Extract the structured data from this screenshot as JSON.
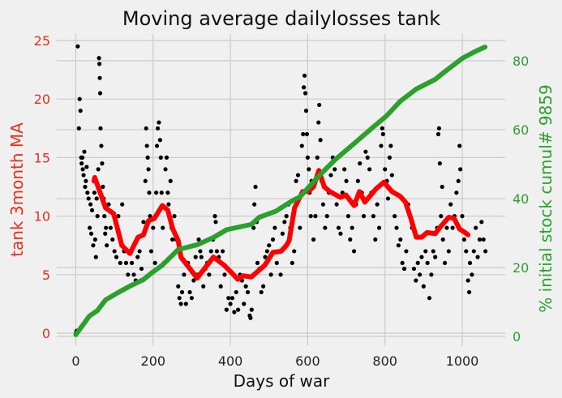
{
  "chart_data": {
    "type": "scatter+line",
    "title": "Moving average dailylosses tank",
    "xlabel": "Days of war",
    "ylabel_left": "tank 3month MA",
    "ylabel_right": "% initial stock cumul# 9859",
    "xlim": [
      -50,
      1110
    ],
    "ylim_left": [
      -0.7,
      25.7
    ],
    "ylim_right": [
      -3,
      87.6
    ],
    "xticks": [
      "0",
      "200",
      "400",
      "600",
      "800",
      "1000"
    ],
    "yticks_left": [
      "0",
      "5",
      "10",
      "15",
      "20",
      "25"
    ],
    "yticks_right": [
      "0",
      "20",
      "40",
      "60",
      "80"
    ],
    "grid": true,
    "colors": {
      "daily": "#000000",
      "ma": "#ff0000",
      "cumulative": "#2ca02c",
      "left_axis": "#e5301e",
      "right_axis": "#2ca02c",
      "background": "#f0f0f0"
    },
    "daily_losses": [
      [
        0,
        0
      ],
      [
        2,
        0.2
      ],
      [
        5,
        24.5
      ],
      [
        8,
        17.5
      ],
      [
        10,
        20
      ],
      [
        12,
        19
      ],
      [
        14,
        15
      ],
      [
        15,
        14.5
      ],
      [
        17,
        15
      ],
      [
        18,
        14
      ],
      [
        20,
        13.5
      ],
      [
        22,
        15.5
      ],
      [
        24,
        12.5
      ],
      [
        26,
        13
      ],
      [
        28,
        14.2
      ],
      [
        30,
        12
      ],
      [
        33,
        11.5
      ],
      [
        36,
        9
      ],
      [
        38,
        11
      ],
      [
        40,
        8.5
      ],
      [
        42,
        10.5
      ],
      [
        45,
        7.5
      ],
      [
        48,
        12
      ],
      [
        50,
        8
      ],
      [
        52,
        6.5
      ],
      [
        54,
        11.5
      ],
      [
        56,
        10
      ],
      [
        58,
        14
      ],
      [
        60,
        23.5
      ],
      [
        61,
        23
      ],
      [
        62,
        21.8
      ],
      [
        63,
        20.5
      ],
      [
        64,
        17.5
      ],
      [
        66,
        16
      ],
      [
        68,
        14.5
      ],
      [
        70,
        12.5
      ],
      [
        72,
        11.5
      ],
      [
        74,
        10
      ],
      [
        76,
        8.5
      ],
      [
        78,
        9
      ],
      [
        80,
        7.5
      ],
      [
        85,
        11
      ],
      [
        90,
        9
      ],
      [
        95,
        8
      ],
      [
        100,
        7
      ],
      [
        105,
        6.5
      ],
      [
        110,
        10
      ],
      [
        115,
        6
      ],
      [
        120,
        11
      ],
      [
        125,
        7
      ],
      [
        130,
        6
      ],
      [
        135,
        5
      ],
      [
        140,
        7
      ],
      [
        145,
        6
      ],
      [
        150,
        5
      ],
      [
        155,
        4.5
      ],
      [
        160,
        6.5
      ],
      [
        165,
        7
      ],
      [
        170,
        5.5
      ],
      [
        175,
        9.5
      ],
      [
        180,
        13
      ],
      [
        182,
        17.5
      ],
      [
        184,
        16
      ],
      [
        186,
        15
      ],
      [
        188,
        14
      ],
      [
        190,
        12
      ],
      [
        192,
        10
      ],
      [
        195,
        7
      ],
      [
        200,
        9
      ],
      [
        205,
        6
      ],
      [
        208,
        12
      ],
      [
        210,
        16
      ],
      [
        212,
        17.5
      ],
      [
        215,
        18
      ],
      [
        218,
        16.5
      ],
      [
        220,
        15
      ],
      [
        222,
        12
      ],
      [
        225,
        9
      ],
      [
        228,
        6
      ],
      [
        232,
        14
      ],
      [
        235,
        15
      ],
      [
        238,
        12
      ],
      [
        240,
        11
      ],
      [
        245,
        13
      ],
      [
        248,
        9
      ],
      [
        250,
        8
      ],
      [
        255,
        10
      ],
      [
        260,
        8
      ],
      [
        265,
        4
      ],
      [
        268,
        3
      ],
      [
        272,
        2.5
      ],
      [
        275,
        3.5
      ],
      [
        280,
        5
      ],
      [
        285,
        2.5
      ],
      [
        290,
        6
      ],
      [
        295,
        3.5
      ],
      [
        300,
        3
      ],
      [
        305,
        4.5
      ],
      [
        310,
        6.5
      ],
      [
        315,
        5
      ],
      [
        318,
        8
      ],
      [
        322,
        7
      ],
      [
        325,
        6.5
      ],
      [
        330,
        4
      ],
      [
        335,
        5.5
      ],
      [
        340,
        6
      ],
      [
        345,
        5
      ],
      [
        350,
        7
      ],
      [
        355,
        8
      ],
      [
        360,
        10
      ],
      [
        362,
        9.5
      ],
      [
        365,
        7
      ],
      [
        370,
        6.5
      ],
      [
        375,
        4
      ],
      [
        380,
        7
      ],
      [
        385,
        5
      ],
      [
        390,
        2
      ],
      [
        395,
        3
      ],
      [
        400,
        2.5
      ],
      [
        405,
        3
      ],
      [
        410,
        1.8
      ],
      [
        415,
        3.5
      ],
      [
        420,
        2
      ],
      [
        425,
        5
      ],
      [
        430,
        4.5
      ],
      [
        435,
        2.5
      ],
      [
        440,
        4
      ],
      [
        445,
        3.5
      ],
      [
        450,
        1.5
      ],
      [
        452,
        1.3
      ],
      [
        455,
        2
      ],
      [
        460,
        9
      ],
      [
        462,
        11
      ],
      [
        465,
        12.5
      ],
      [
        468,
        9.5
      ],
      [
        470,
        6
      ],
      [
        475,
        5.5
      ],
      [
        480,
        3.5
      ],
      [
        485,
        4
      ],
      [
        490,
        6.5
      ],
      [
        495,
        7
      ],
      [
        500,
        7.5
      ],
      [
        505,
        5
      ],
      [
        510,
        8
      ],
      [
        515,
        9
      ],
      [
        520,
        6
      ],
      [
        525,
        7
      ],
      [
        530,
        5
      ],
      [
        535,
        8.5
      ],
      [
        540,
        9.5
      ],
      [
        545,
        10
      ],
      [
        550,
        11
      ],
      [
        555,
        9
      ],
      [
        560,
        6
      ],
      [
        565,
        7
      ],
      [
        570,
        13
      ],
      [
        575,
        13.5
      ],
      [
        580,
        9
      ],
      [
        585,
        16
      ],
      [
        588,
        17
      ],
      [
        590,
        21
      ],
      [
        592,
        22
      ],
      [
        594,
        20.5
      ],
      [
        596,
        19
      ],
      [
        598,
        17
      ],
      [
        600,
        15
      ],
      [
        603,
        14
      ],
      [
        605,
        12
      ],
      [
        608,
        10
      ],
      [
        610,
        13
      ],
      [
        615,
        8
      ],
      [
        620,
        10
      ],
      [
        625,
        15
      ],
      [
        628,
        18
      ],
      [
        630,
        19.5
      ],
      [
        633,
        16.5
      ],
      [
        636,
        13
      ],
      [
        640,
        11
      ],
      [
        645,
        9
      ],
      [
        650,
        10
      ],
      [
        655,
        12
      ],
      [
        660,
        13.5
      ],
      [
        665,
        15
      ],
      [
        670,
        14
      ],
      [
        675,
        11
      ],
      [
        680,
        9
      ],
      [
        685,
        8.5
      ],
      [
        690,
        12
      ],
      [
        695,
        14
      ],
      [
        700,
        13
      ],
      [
        705,
        10
      ],
      [
        710,
        8
      ],
      [
        715,
        9
      ],
      [
        720,
        7
      ],
      [
        725,
        11
      ],
      [
        730,
        13
      ],
      [
        735,
        14.5
      ],
      [
        740,
        12
      ],
      [
        745,
        10
      ],
      [
        750,
        15.5
      ],
      [
        755,
        15
      ],
      [
        760,
        14
      ],
      [
        765,
        12
      ],
      [
        770,
        10
      ],
      [
        775,
        8
      ],
      [
        780,
        11
      ],
      [
        785,
        9
      ],
      [
        790,
        16
      ],
      [
        793,
        17.5
      ],
      [
        795,
        17
      ],
      [
        800,
        14
      ],
      [
        805,
        13
      ],
      [
        808,
        11.5
      ],
      [
        812,
        15
      ],
      [
        815,
        16
      ],
      [
        818,
        13.5
      ],
      [
        822,
        12
      ],
      [
        825,
        10
      ],
      [
        830,
        9
      ],
      [
        835,
        7.5
      ],
      [
        840,
        8
      ],
      [
        845,
        6
      ],
      [
        850,
        5.5
      ],
      [
        855,
        7
      ],
      [
        860,
        11
      ],
      [
        865,
        10
      ],
      [
        870,
        9
      ],
      [
        875,
        5.5
      ],
      [
        880,
        4.5
      ],
      [
        885,
        6
      ],
      [
        890,
        5
      ],
      [
        895,
        6.5
      ],
      [
        900,
        4
      ],
      [
        905,
        7
      ],
      [
        910,
        6
      ],
      [
        915,
        3
      ],
      [
        920,
        5
      ],
      [
        925,
        7
      ],
      [
        930,
        6.5
      ],
      [
        935,
        9
      ],
      [
        938,
        17
      ],
      [
        940,
        17.5
      ],
      [
        942,
        14.5
      ],
      [
        945,
        10
      ],
      [
        948,
        12.5
      ],
      [
        950,
        8
      ],
      [
        955,
        6
      ],
      [
        960,
        9
      ],
      [
        965,
        7
      ],
      [
        970,
        11
      ],
      [
        975,
        9
      ],
      [
        980,
        10
      ],
      [
        985,
        12
      ],
      [
        990,
        13
      ],
      [
        993,
        16
      ],
      [
        995,
        14
      ],
      [
        1000,
        10
      ],
      [
        1005,
        8
      ],
      [
        1010,
        7
      ],
      [
        1015,
        4.5
      ],
      [
        1018,
        3.5
      ],
      [
        1020,
        6
      ],
      [
        1025,
        5
      ],
      [
        1030,
        7
      ],
      [
        1035,
        9
      ],
      [
        1040,
        6.5
      ],
      [
        1045,
        8
      ],
      [
        1050,
        9.5
      ],
      [
        1055,
        8
      ],
      [
        1060,
        7
      ]
    ],
    "moving_average": [
      [
        47,
        13.0
      ],
      [
        49,
        13.3
      ],
      [
        77,
        10.7
      ],
      [
        98,
        10.2
      ],
      [
        119,
        7.5
      ],
      [
        140,
        6.8
      ],
      [
        161,
        8.2
      ],
      [
        175,
        8.4
      ],
      [
        188,
        9.6
      ],
      [
        203,
        9.8
      ],
      [
        224,
        10.9
      ],
      [
        238,
        10.5
      ],
      [
        251,
        8.9
      ],
      [
        265,
        7.9
      ],
      [
        272,
        6.5
      ],
      [
        293,
        5.6
      ],
      [
        314,
        4.7
      ],
      [
        335,
        5.6
      ],
      [
        356,
        6.5
      ],
      [
        384,
        5.8
      ],
      [
        405,
        5.1
      ],
      [
        419,
        4.6
      ],
      [
        433,
        4.9
      ],
      [
        454,
        4.8
      ],
      [
        475,
        5.4
      ],
      [
        489,
        5.8
      ],
      [
        510,
        6.9
      ],
      [
        531,
        7.0
      ],
      [
        545,
        7.5
      ],
      [
        552,
        7.9
      ],
      [
        566,
        10.7
      ],
      [
        587,
        12.1
      ],
      [
        601,
        12.1
      ],
      [
        615,
        12.5
      ],
      [
        629,
        13.9
      ],
      [
        643,
        12.5
      ],
      [
        657,
        12.1
      ],
      [
        685,
        11.6
      ],
      [
        699,
        11.8
      ],
      [
        720,
        10.9
      ],
      [
        734,
        12.1
      ],
      [
        748,
        11.2
      ],
      [
        776,
        12.3
      ],
      [
        797,
        12.9
      ],
      [
        818,
        12.1
      ],
      [
        839,
        11.7
      ],
      [
        853,
        11.2
      ],
      [
        867,
        9.8
      ],
      [
        881,
        8.2
      ],
      [
        895,
        8.2
      ],
      [
        909,
        8.6
      ],
      [
        930,
        8.5
      ],
      [
        944,
        9.1
      ],
      [
        965,
        9.9
      ],
      [
        979,
        9.8
      ],
      [
        993,
        8.9
      ],
      [
        1007,
        8.6
      ],
      [
        1015,
        8.4
      ]
    ],
    "cumulative_pct": [
      [
        0,
        0.5
      ],
      [
        35,
        5.9
      ],
      [
        56,
        7.5
      ],
      [
        77,
        10.6
      ],
      [
        112,
        12.9
      ],
      [
        140,
        14.6
      ],
      [
        175,
        16.5
      ],
      [
        196,
        18.4
      ],
      [
        224,
        20.7
      ],
      [
        265,
        25.2
      ],
      [
        314,
        26.6
      ],
      [
        356,
        28.7
      ],
      [
        391,
        31.0
      ],
      [
        454,
        32.5
      ],
      [
        475,
        34.6
      ],
      [
        517,
        36.3
      ],
      [
        559,
        39.3
      ],
      [
        580,
        40.5
      ],
      [
        601,
        43.1
      ],
      [
        629,
        46.6
      ],
      [
        671,
        51.3
      ],
      [
        713,
        55.3
      ],
      [
        769,
        60.7
      ],
      [
        804,
        64.0
      ],
      [
        839,
        68.2
      ],
      [
        881,
        71.8
      ],
      [
        930,
        74.6
      ],
      [
        951,
        76.5
      ],
      [
        1000,
        80.7
      ],
      [
        1035,
        82.8
      ],
      [
        1059,
        84.0
      ]
    ]
  }
}
